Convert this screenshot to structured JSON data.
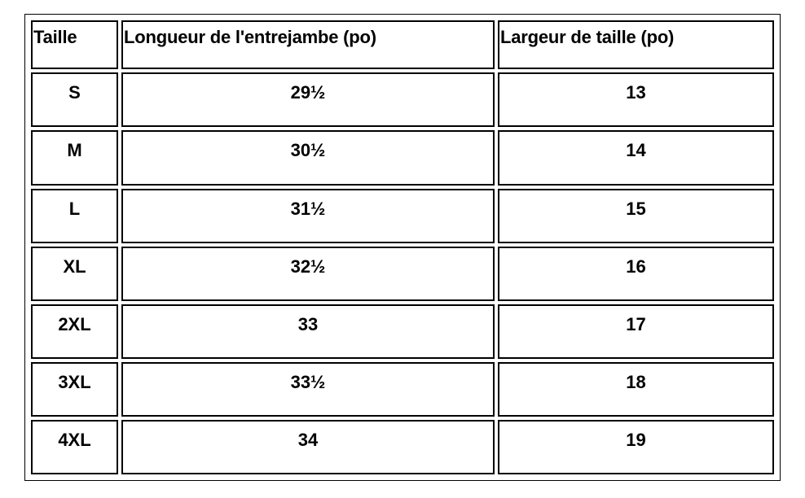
{
  "table": {
    "headers": [
      "Taille",
      "Longueur de l'entrejambe (po)",
      "Largeur de taille (po)"
    ],
    "rows": [
      [
        "S",
        "29½",
        "13"
      ],
      [
        "M",
        "30½",
        "14"
      ],
      [
        "L",
        "31½",
        "15"
      ],
      [
        "XL",
        "32½",
        "16"
      ],
      [
        "2XL",
        "33",
        "17"
      ],
      [
        "3XL",
        "33½",
        "18"
      ],
      [
        "4XL",
        "34",
        "19"
      ]
    ]
  }
}
